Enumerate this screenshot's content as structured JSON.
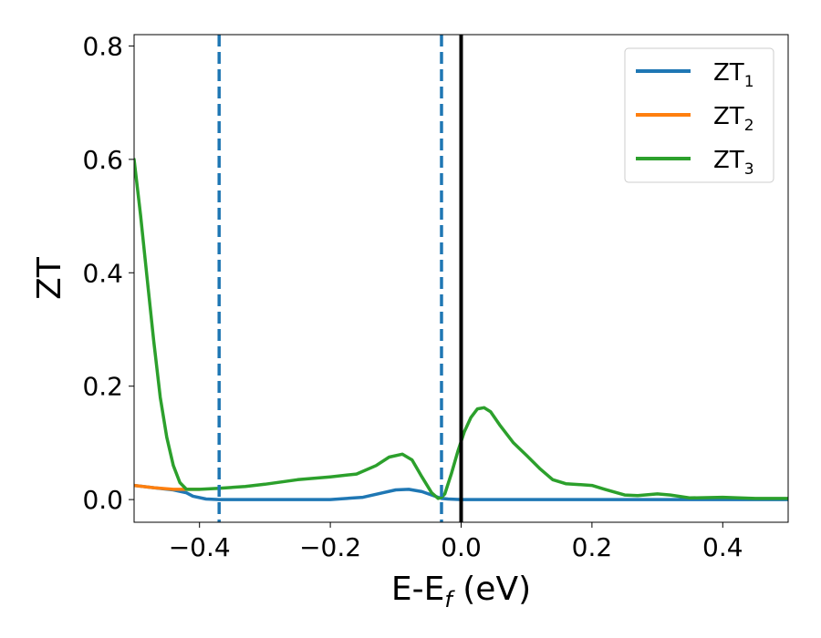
{
  "chart_data": {
    "type": "line",
    "xlabel_main": "E-E",
    "xlabel_sub": "f",
    "xlabel_unit": " (eV)",
    "ylabel": "ZT",
    "xlim": [
      -0.5,
      0.5
    ],
    "ylim": [
      -0.04,
      0.82
    ],
    "x_ticks": [
      {
        "value": -0.4,
        "label": "−0.4"
      },
      {
        "value": -0.2,
        "label": "−0.2"
      },
      {
        "value": 0.0,
        "label": "0.0"
      },
      {
        "value": 0.2,
        "label": "0.2"
      },
      {
        "value": 0.4,
        "label": "0.4"
      }
    ],
    "y_ticks": [
      {
        "value": 0.0,
        "label": "0.0"
      },
      {
        "value": 0.2,
        "label": "0.2"
      },
      {
        "value": 0.4,
        "label": "0.4"
      },
      {
        "value": 0.6,
        "label": "0.6"
      },
      {
        "value": 0.8,
        "label": "0.8"
      }
    ],
    "grid": false,
    "legend": {
      "placement": "top-right",
      "entries": [
        {
          "main": "ZT",
          "sub": "1",
          "color": "#1f77b4"
        },
        {
          "main": "ZT",
          "sub": "2",
          "color": "#ff7f0e"
        },
        {
          "main": "ZT",
          "sub": "3",
          "color": "#2ca02c"
        }
      ]
    },
    "vertical_lines": [
      {
        "x": -0.37,
        "color": "#1f77b4",
        "style": "dashed"
      },
      {
        "x": -0.03,
        "color": "#1f77b4",
        "style": "dashed"
      },
      {
        "x": 0.0,
        "color": "#000000",
        "style": "solid"
      }
    ],
    "series": [
      {
        "color": "#1f77b4",
        "points": [
          [
            -0.5,
            0.025
          ],
          [
            -0.47,
            0.021
          ],
          [
            -0.44,
            0.017
          ],
          [
            -0.42,
            0.012
          ],
          [
            -0.41,
            0.006
          ],
          [
            -0.39,
            0.001
          ],
          [
            -0.37,
            0.0
          ],
          [
            -0.3,
            0.0
          ],
          [
            -0.2,
            0.0
          ],
          [
            -0.15,
            0.004
          ],
          [
            -0.12,
            0.012
          ],
          [
            -0.1,
            0.017
          ],
          [
            -0.08,
            0.018
          ],
          [
            -0.06,
            0.014
          ],
          [
            -0.04,
            0.006
          ],
          [
            -0.03,
            0.002
          ],
          [
            -0.02,
            0.001
          ],
          [
            0.0,
            0.0
          ],
          [
            0.1,
            0.0
          ],
          [
            0.3,
            0.0
          ],
          [
            0.5,
            0.0
          ]
        ]
      },
      {
        "color": "#ff7f0e",
        "points": [
          [
            -0.5,
            0.025
          ],
          [
            -0.47,
            0.021
          ],
          [
            -0.44,
            0.018
          ],
          [
            -0.42,
            0.018
          ],
          [
            -0.4,
            0.018
          ]
        ]
      },
      {
        "color": "#2ca02c",
        "points": [
          [
            -0.5,
            0.6
          ],
          [
            -0.49,
            0.5
          ],
          [
            -0.48,
            0.39
          ],
          [
            -0.47,
            0.28
          ],
          [
            -0.46,
            0.18
          ],
          [
            -0.45,
            0.11
          ],
          [
            -0.44,
            0.06
          ],
          [
            -0.43,
            0.03
          ],
          [
            -0.42,
            0.018
          ],
          [
            -0.4,
            0.018
          ],
          [
            -0.37,
            0.02
          ],
          [
            -0.33,
            0.023
          ],
          [
            -0.3,
            0.027
          ],
          [
            -0.25,
            0.035
          ],
          [
            -0.2,
            0.04
          ],
          [
            -0.16,
            0.045
          ],
          [
            -0.13,
            0.06
          ],
          [
            -0.11,
            0.075
          ],
          [
            -0.09,
            0.08
          ],
          [
            -0.075,
            0.07
          ],
          [
            -0.06,
            0.04
          ],
          [
            -0.045,
            0.012
          ],
          [
            -0.035,
            0.002
          ],
          [
            -0.03,
            0.004
          ],
          [
            -0.025,
            0.01
          ],
          [
            -0.015,
            0.045
          ],
          [
            -0.005,
            0.085
          ],
          [
            0.005,
            0.12
          ],
          [
            0.015,
            0.145
          ],
          [
            0.025,
            0.16
          ],
          [
            0.035,
            0.162
          ],
          [
            0.045,
            0.155
          ],
          [
            0.06,
            0.13
          ],
          [
            0.08,
            0.1
          ],
          [
            0.1,
            0.078
          ],
          [
            0.12,
            0.055
          ],
          [
            0.14,
            0.035
          ],
          [
            0.16,
            0.028
          ],
          [
            0.2,
            0.025
          ],
          [
            0.22,
            0.018
          ],
          [
            0.25,
            0.008
          ],
          [
            0.27,
            0.007
          ],
          [
            0.3,
            0.01
          ],
          [
            0.32,
            0.008
          ],
          [
            0.35,
            0.003
          ],
          [
            0.4,
            0.004
          ],
          [
            0.45,
            0.002
          ],
          [
            0.5,
            0.002
          ]
        ]
      }
    ]
  }
}
